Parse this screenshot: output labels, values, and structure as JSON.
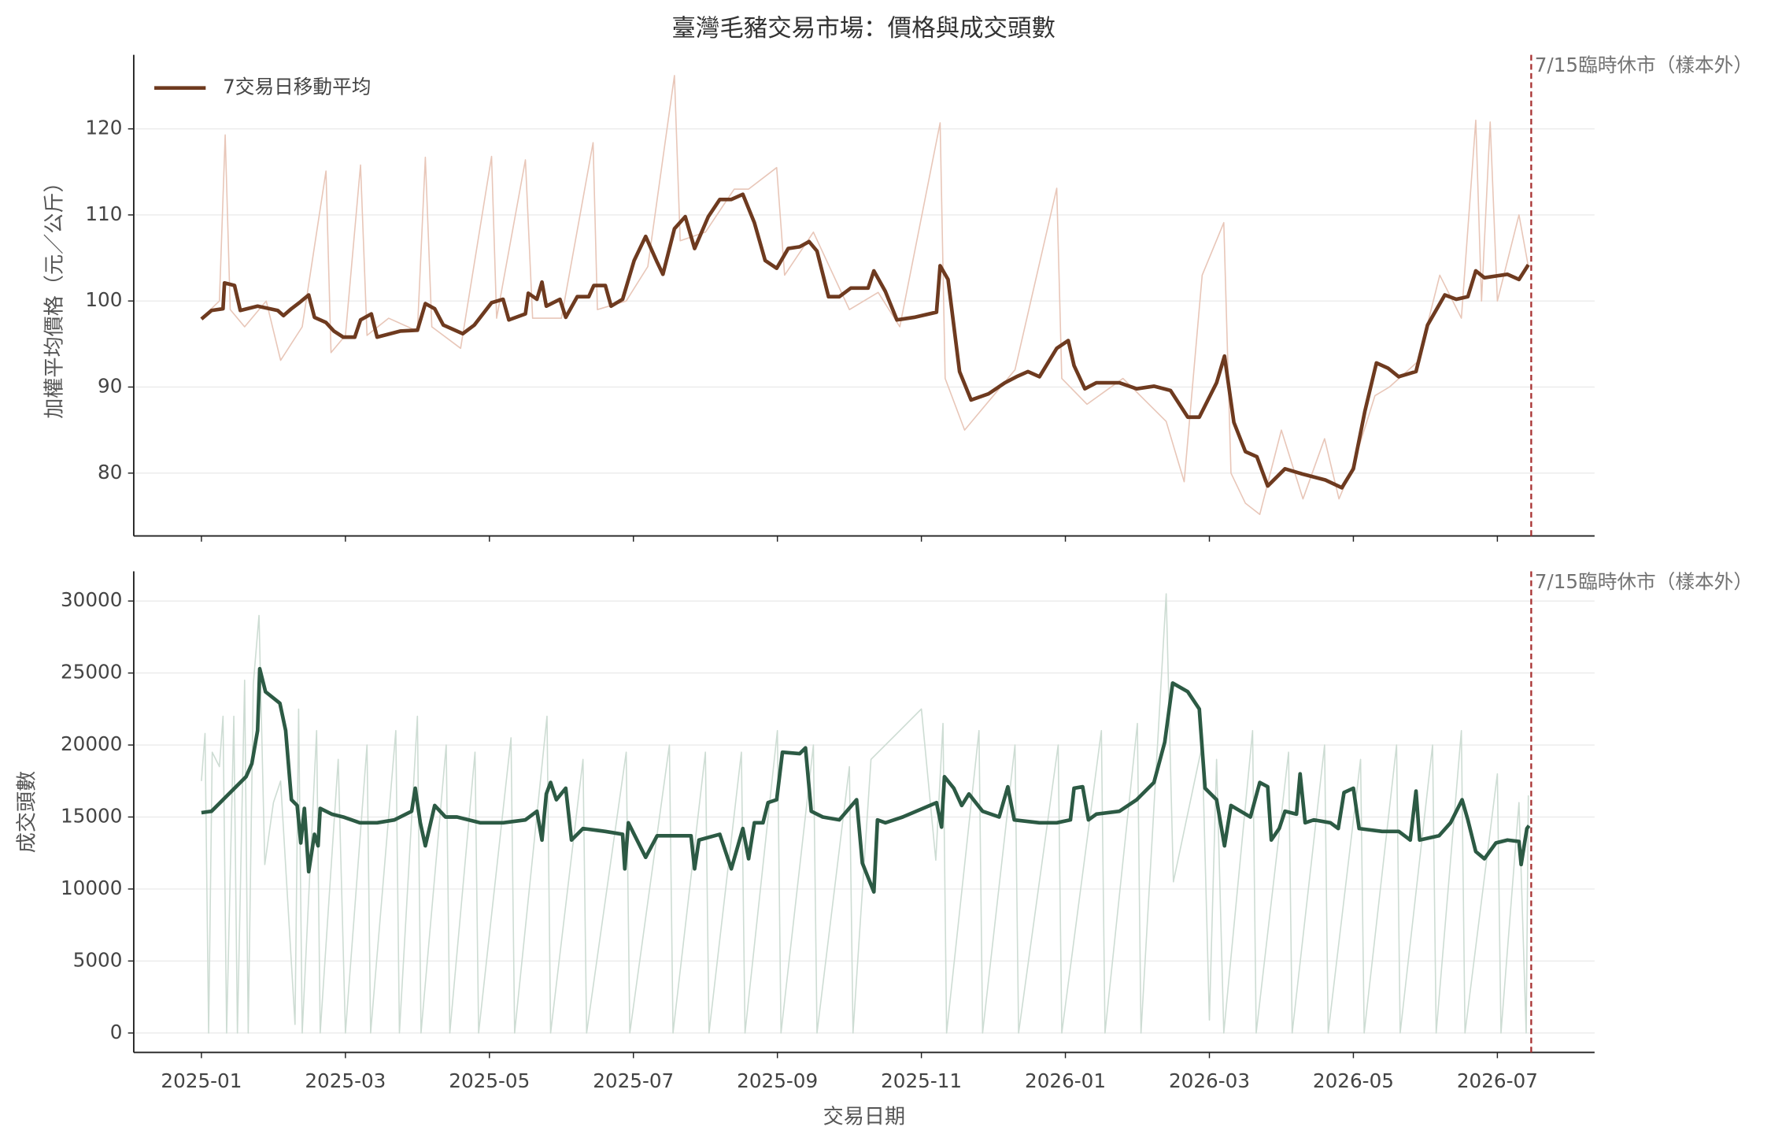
{
  "chart_data": [
    {
      "type": "line",
      "title": "臺灣毛豬交易市場：價格與成交頭數",
      "ylabel": "加權平均價格（元／公斤）",
      "xlim": [
        -0.94,
        19.35
      ],
      "xticks": [
        0,
        2,
        4,
        6,
        8,
        10,
        12,
        14,
        16,
        18
      ],
      "ylim": [
        72.7,
        128.6
      ],
      "yticks": [
        80,
        90,
        100,
        110,
        120
      ],
      "grid": true,
      "legend": "upper left",
      "annotations": [
        {
          "x": 18.47,
          "text": "7/15臨時休市（樣本外）",
          "color": "#a83232"
        }
      ],
      "series": [
        {
          "color": "#e8c6b8",
          "x": [
            0,
            0.25,
            0.33,
            0.4,
            0.6,
            0.9,
            1.1,
            1.4,
            1.73,
            1.8,
            2.0,
            2.21,
            2.3,
            2.6,
            3.0,
            3.11,
            3.2,
            3.6,
            4.03,
            4.1,
            4.5,
            4.6,
            5.0,
            5.44,
            5.5,
            5.9,
            6.2,
            6.57,
            6.65,
            7.0,
            7.4,
            7.6,
            7.99,
            8.1,
            8.5,
            9.0,
            9.4,
            9.7,
            10.26,
            10.33,
            10.6,
            11.0,
            11.3,
            11.88,
            11.95,
            12.3,
            12.8,
            13.4,
            13.65,
            13.9,
            14.2,
            14.3,
            14.5,
            14.7,
            15.0,
            15.3,
            15.6,
            15.8,
            16.0,
            16.3,
            16.5,
            16.9,
            17.2,
            17.5,
            17.7,
            17.78,
            17.9,
            18.0,
            18.3,
            18.43
          ],
          "values": [
            98,
            100,
            119.3,
            99,
            97,
            100,
            93.1,
            97,
            115.1,
            94,
            96,
            115.8,
            96,
            98,
            96.5,
            116.7,
            97,
            94.5,
            116.8,
            98,
            116.4,
            98,
            98,
            118.4,
            99,
            100,
            104,
            126.2,
            107,
            108,
            113,
            113,
            115.5,
            103,
            108,
            99,
            101,
            97,
            120.7,
            91,
            85,
            89,
            92,
            113.1,
            91,
            88,
            91,
            86,
            79,
            103,
            109.1,
            80,
            76.5,
            75.2,
            85,
            77,
            84,
            77,
            81,
            89,
            90,
            93,
            103,
            98,
            121.0,
            100,
            120.8,
            100,
            110,
            104
          ]
        },
        {
          "name": "7交易日移動平均",
          "color": "#6e3a1f",
          "x": [
            0,
            0.14,
            0.3,
            0.32,
            0.46,
            0.54,
            0.78,
            1.06,
            1.14,
            1.25,
            1.36,
            1.49,
            1.57,
            1.73,
            1.84,
            1.97,
            2.13,
            2.21,
            2.36,
            2.44,
            2.76,
            3.0,
            3.11,
            3.24,
            3.36,
            3.63,
            3.79,
            4.03,
            4.19,
            4.27,
            4.5,
            4.54,
            4.66,
            4.73,
            4.79,
            4.98,
            5.06,
            5.22,
            5.38,
            5.45,
            5.61,
            5.69,
            5.85,
            6.01,
            6.17,
            6.33,
            6.41,
            6.57,
            6.72,
            6.85,
            7.04,
            7.2,
            7.36,
            7.52,
            7.68,
            7.83,
            7.99,
            8.15,
            8.31,
            8.44,
            8.55,
            8.71,
            8.86,
            9.02,
            9.26,
            9.34,
            9.5,
            9.66,
            9.9,
            10.21,
            10.26,
            10.37,
            10.53,
            10.69,
            10.93,
            11.16,
            11.32,
            11.48,
            11.64,
            11.88,
            12.04,
            12.12,
            12.27,
            12.43,
            12.75,
            12.99,
            13.23,
            13.46,
            13.7,
            13.86,
            14.1,
            14.21,
            14.34,
            14.5,
            14.66,
            14.81,
            15.05,
            15.29,
            15.61,
            15.84,
            16.0,
            16.16,
            16.32,
            16.48,
            16.63,
            16.87,
            17.03,
            17.27,
            17.43,
            17.59,
            17.7,
            17.82,
            18.14,
            18.3,
            18.43
          ],
          "values": [
            97.9,
            98.9,
            99.1,
            102.1,
            101.8,
            98.9,
            99.4,
            98.9,
            98.3,
            99.1,
            99.8,
            100.7,
            98.1,
            97.5,
            96.5,
            95.8,
            95.8,
            97.8,
            98.5,
            95.8,
            96.5,
            96.6,
            99.7,
            99.1,
            97.2,
            96.2,
            97.2,
            99.8,
            100.2,
            97.8,
            98.5,
            100.9,
            100.2,
            102.2,
            99.4,
            100.2,
            98.1,
            100.5,
            100.5,
            101.8,
            101.8,
            99.4,
            100.2,
            104.7,
            107.5,
            104.5,
            103.1,
            108.4,
            109.8,
            106.1,
            109.8,
            111.8,
            111.8,
            112.4,
            109.1,
            104.7,
            103.8,
            106.1,
            106.3,
            106.9,
            105.8,
            100.5,
            100.5,
            101.5,
            101.5,
            103.5,
            101.1,
            97.8,
            98.1,
            98.7,
            104.1,
            102.5,
            91.8,
            88.5,
            89.2,
            90.5,
            91.2,
            91.8,
            91.2,
            94.5,
            95.4,
            92.5,
            89.8,
            90.5,
            90.5,
            89.8,
            90.1,
            89.6,
            86.5,
            86.5,
            90.5,
            93.6,
            85.9,
            82.5,
            81.9,
            78.5,
            80.5,
            79.9,
            79.2,
            78.3,
            80.5,
            87.2,
            92.8,
            92.2,
            91.2,
            91.8,
            97.2,
            100.7,
            100.2,
            100.5,
            103.5,
            102.7,
            103.1,
            102.5,
            104.2
          ]
        }
      ]
    },
    {
      "type": "line",
      "ylabel": "成交頭數",
      "xlabel": "交易日期",
      "xlim": [
        -0.94,
        19.35
      ],
      "xticks": [
        {
          "value": 0,
          "label": "2025-01"
        },
        {
          "value": 2,
          "label": "2025-03"
        },
        {
          "value": 4,
          "label": "2025-05"
        },
        {
          "value": 6,
          "label": "2025-07"
        },
        {
          "value": 8,
          "label": "2025-09"
        },
        {
          "value": 10,
          "label": "2025-11"
        },
        {
          "value": 12,
          "label": "2026-01"
        },
        {
          "value": 14,
          "label": "2026-03"
        },
        {
          "value": 16,
          "label": "2026-05"
        },
        {
          "value": 18,
          "label": "2026-07"
        }
      ],
      "ylim": [
        -1350,
        32060
      ],
      "yticks": [
        0,
        5000,
        10000,
        15000,
        20000,
        25000,
        30000
      ],
      "grid": true,
      "annotations": [
        {
          "x": 18.47,
          "text": "7/15臨時休市（樣本外）",
          "color": "#a83232"
        }
      ],
      "series": [
        {
          "color": "#cddcd3",
          "x": [
            0,
            0.05,
            0.1,
            0.15,
            0.25,
            0.3,
            0.35,
            0.45,
            0.5,
            0.6,
            0.65,
            0.72,
            0.8,
            0.88,
            1.0,
            1.1,
            1.3,
            1.35,
            1.4,
            1.6,
            1.65,
            1.9,
            2.0,
            2.3,
            2.35,
            2.7,
            2.75,
            3.0,
            3.05,
            3.4,
            3.45,
            3.8,
            3.85,
            4.3,
            4.35,
            4.8,
            4.85,
            5.3,
            5.35,
            5.9,
            5.95,
            6.5,
            6.55,
            7.0,
            7.05,
            7.5,
            7.55,
            8.0,
            8.05,
            8.5,
            8.55,
            9.0,
            9.05,
            9.3,
            10.0,
            10.2,
            10.3,
            10.35,
            10.8,
            10.85,
            11.3,
            11.35,
            11.9,
            11.95,
            12.5,
            12.55,
            13.0,
            13.05,
            13.4,
            13.5,
            13.9,
            14.0,
            14.1,
            14.2,
            14.6,
            14.65,
            15.1,
            15.15,
            15.6,
            15.65,
            16.1,
            16.15,
            16.6,
            16.65,
            17.1,
            17.15,
            17.5,
            17.55,
            18.0,
            18.05,
            18.3,
            18.4,
            18.43
          ],
          "values": [
            17500,
            20800,
            0,
            19500,
            18500,
            22000,
            0,
            22000,
            0,
            24500,
            0,
            24200,
            29000,
            11700,
            16000,
            17500,
            600,
            22500,
            0,
            21000,
            0,
            19000,
            0,
            20000,
            0,
            21000,
            0,
            22000,
            0,
            20000,
            0,
            19500,
            0,
            20500,
            0,
            22000,
            0,
            19000,
            0,
            19500,
            0,
            20000,
            0,
            19500,
            0,
            19500,
            0,
            21000,
            0,
            20000,
            0,
            18500,
            0,
            19000,
            22500,
            12000,
            21500,
            0,
            21000,
            0,
            20000,
            0,
            20000,
            0,
            21000,
            0,
            21500,
            0,
            30500,
            10500,
            20000,
            900,
            19000,
            0,
            21000,
            0,
            19500,
            0,
            20000,
            0,
            19000,
            0,
            20000,
            0,
            20000,
            0,
            21000,
            0,
            18000,
            0,
            16000,
            0,
            16500
          ]
        },
        {
          "name": "7交易日移動平均",
          "color": "#2c5a44",
          "x": [
            0,
            0.14,
            0.3,
            0.46,
            0.62,
            0.7,
            0.78,
            0.81,
            0.89,
            1.09,
            1.17,
            1.25,
            1.33,
            1.38,
            1.43,
            1.49,
            1.57,
            1.62,
            1.65,
            1.81,
            1.97,
            2.2,
            2.44,
            2.68,
            2.92,
            2.97,
            3.04,
            3.11,
            3.24,
            3.39,
            3.55,
            3.87,
            4.19,
            4.5,
            4.66,
            4.73,
            4.79,
            4.85,
            4.93,
            5.06,
            5.14,
            5.3,
            5.61,
            5.85,
            5.88,
            5.93,
            6.09,
            6.17,
            6.33,
            6.57,
            6.8,
            6.85,
            6.91,
            7.2,
            7.36,
            7.52,
            7.6,
            7.68,
            7.8,
            7.87,
            7.99,
            8.07,
            8.31,
            8.39,
            8.47,
            8.63,
            8.86,
            9.1,
            9.18,
            9.34,
            9.39,
            9.5,
            9.74,
            10.21,
            10.28,
            10.32,
            10.45,
            10.56,
            10.66,
            10.85,
            11.08,
            11.2,
            11.29,
            11.64,
            11.88,
            12.07,
            12.12,
            12.24,
            12.32,
            12.43,
            12.75,
            12.99,
            13.23,
            13.38,
            13.49,
            13.7,
            13.86,
            13.94,
            14.1,
            14.21,
            14.3,
            14.57,
            14.7,
            14.81,
            14.86,
            14.97,
            15.05,
            15.21,
            15.26,
            15.33,
            15.45,
            15.68,
            15.79,
            15.87,
            16.0,
            16.08,
            16.4,
            16.63,
            16.79,
            16.87,
            16.92,
            17.19,
            17.35,
            17.51,
            17.59,
            17.7,
            17.82,
            17.98,
            18.14,
            18.3,
            18.33,
            18.41,
            18.44
          ],
          "values": [
            15300,
            15400,
            16200,
            17000,
            17800,
            18700,
            21000,
            25300,
            23700,
            22900,
            21000,
            16200,
            15800,
            13200,
            15600,
            11200,
            13800,
            13000,
            15600,
            15200,
            15000,
            14600,
            14600,
            14800,
            15400,
            17000,
            14600,
            13000,
            15800,
            15000,
            15000,
            14600,
            14600,
            14800,
            15400,
            13400,
            16600,
            17400,
            16200,
            17000,
            13400,
            14200,
            14000,
            13800,
            11400,
            14600,
            13000,
            12200,
            13700,
            13700,
            13700,
            11400,
            13400,
            13800,
            11400,
            14200,
            12100,
            14600,
            14600,
            16000,
            16200,
            19500,
            19400,
            19800,
            15400,
            15000,
            14800,
            16200,
            11800,
            9800,
            14800,
            14600,
            15000,
            16000,
            14300,
            17800,
            17000,
            15800,
            16600,
            15400,
            15000,
            17100,
            14800,
            14600,
            14600,
            14800,
            17000,
            17100,
            14800,
            15200,
            15400,
            16200,
            17400,
            20200,
            24300,
            23700,
            22500,
            17000,
            16200,
            13000,
            15800,
            15000,
            17400,
            17100,
            13400,
            14200,
            15400,
            15200,
            18000,
            14600,
            14800,
            14600,
            14200,
            16700,
            17000,
            14200,
            14000,
            14000,
            13400,
            16800,
            13400,
            13700,
            14600,
            16200,
            14800,
            12600,
            12100,
            13200,
            13400,
            13300,
            11700,
            14200,
            14400
          ]
        }
      ]
    }
  ]
}
